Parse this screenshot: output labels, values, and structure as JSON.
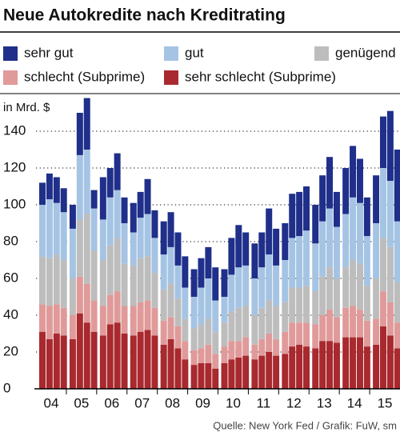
{
  "chart_data": {
    "type": "stacked_bar",
    "title": "Neue Autokredite nach Kreditrating",
    "y_label": "in Mrd. $",
    "source": "Quelle: New York Fed / Grafik: FuW, sm",
    "categories": [
      "04",
      "05",
      "06",
      "07",
      "08",
      "09",
      "10",
      "11",
      "12",
      "13",
      "14",
      "15"
    ],
    "ylim": [
      0,
      160
    ],
    "yticks": [
      0,
      20,
      40,
      60,
      80,
      100,
      120,
      140
    ],
    "grid": true,
    "series": [
      {
        "name": "sehr schlecht (Subprime)",
        "color": "#a8292e",
        "values": [
          [
            31,
            27,
            30,
            29
          ],
          [
            27,
            41,
            36,
            31
          ],
          [
            29,
            35,
            36,
            30
          ],
          [
            29,
            31,
            32,
            29
          ],
          [
            24,
            27,
            22,
            16
          ],
          [
            13,
            14,
            14,
            11
          ],
          [
            14,
            16,
            17,
            18
          ],
          [
            16,
            18,
            20,
            18
          ],
          [
            19,
            23,
            24,
            23
          ],
          [
            22,
            26,
            26,
            25
          ],
          [
            28,
            28,
            28,
            23
          ],
          [
            24,
            34,
            29,
            22
          ]
        ]
      },
      {
        "name": "schlecht (Subprime)",
        "color": "#e09a9a",
        "values": [
          [
            15,
            18,
            16,
            15
          ],
          [
            13,
            20,
            21,
            17
          ],
          [
            16,
            16,
            17,
            15
          ],
          [
            16,
            16,
            16,
            15
          ],
          [
            13,
            12,
            12,
            10
          ],
          [
            8,
            8,
            10,
            8
          ],
          [
            9,
            10,
            9,
            10
          ],
          [
            8,
            9,
            10,
            9
          ],
          [
            12,
            13,
            12,
            13
          ],
          [
            13,
            14,
            17,
            14
          ],
          [
            16,
            17,
            15,
            14
          ],
          [
            14,
            19,
            18,
            14
          ]
        ]
      },
      {
        "name": "genügend",
        "color": "#bdbdbd",
        "values": [
          [
            26,
            26,
            27,
            26
          ],
          [
            20,
            31,
            38,
            27
          ],
          [
            25,
            27,
            29,
            23
          ],
          [
            22,
            24,
            24,
            19
          ],
          [
            17,
            18,
            15,
            12
          ],
          [
            12,
            13,
            14,
            12
          ],
          [
            13,
            16,
            18,
            17
          ],
          [
            16,
            17,
            18,
            18
          ],
          [
            16,
            19,
            19,
            20
          ],
          [
            18,
            21,
            23,
            21
          ],
          [
            22,
            25,
            25,
            19
          ],
          [
            22,
            29,
            30,
            22
          ]
        ]
      },
      {
        "name": "gut",
        "color": "#a5c4e4",
        "values": [
          [
            28,
            32,
            28,
            26
          ],
          [
            27,
            35,
            35,
            23
          ],
          [
            22,
            26,
            26,
            22
          ],
          [
            18,
            22,
            23,
            19
          ],
          [
            19,
            20,
            18,
            17
          ],
          [
            17,
            20,
            22,
            17
          ],
          [
            14,
            20,
            22,
            22
          ],
          [
            20,
            22,
            25,
            22
          ],
          [
            23,
            27,
            28,
            30
          ],
          [
            26,
            30,
            32,
            28
          ],
          [
            29,
            34,
            33,
            27
          ],
          [
            30,
            38,
            36,
            33
          ]
        ]
      },
      {
        "name": "sehr gut",
        "color": "#1f2f8a",
        "values": [
          [
            12,
            14,
            14,
            13
          ],
          [
            13,
            23,
            28,
            10
          ],
          [
            23,
            16,
            20,
            14
          ],
          [
            16,
            14,
            19,
            15
          ],
          [
            18,
            19,
            18,
            17
          ],
          [
            15,
            16,
            17,
            18
          ],
          [
            15,
            20,
            23,
            18
          ],
          [
            19,
            19,
            25,
            20
          ],
          [
            20,
            24,
            24,
            24
          ],
          [
            21,
            25,
            28,
            19
          ],
          [
            25,
            28,
            24,
            21
          ],
          [
            26,
            28,
            38,
            39
          ]
        ]
      }
    ]
  }
}
